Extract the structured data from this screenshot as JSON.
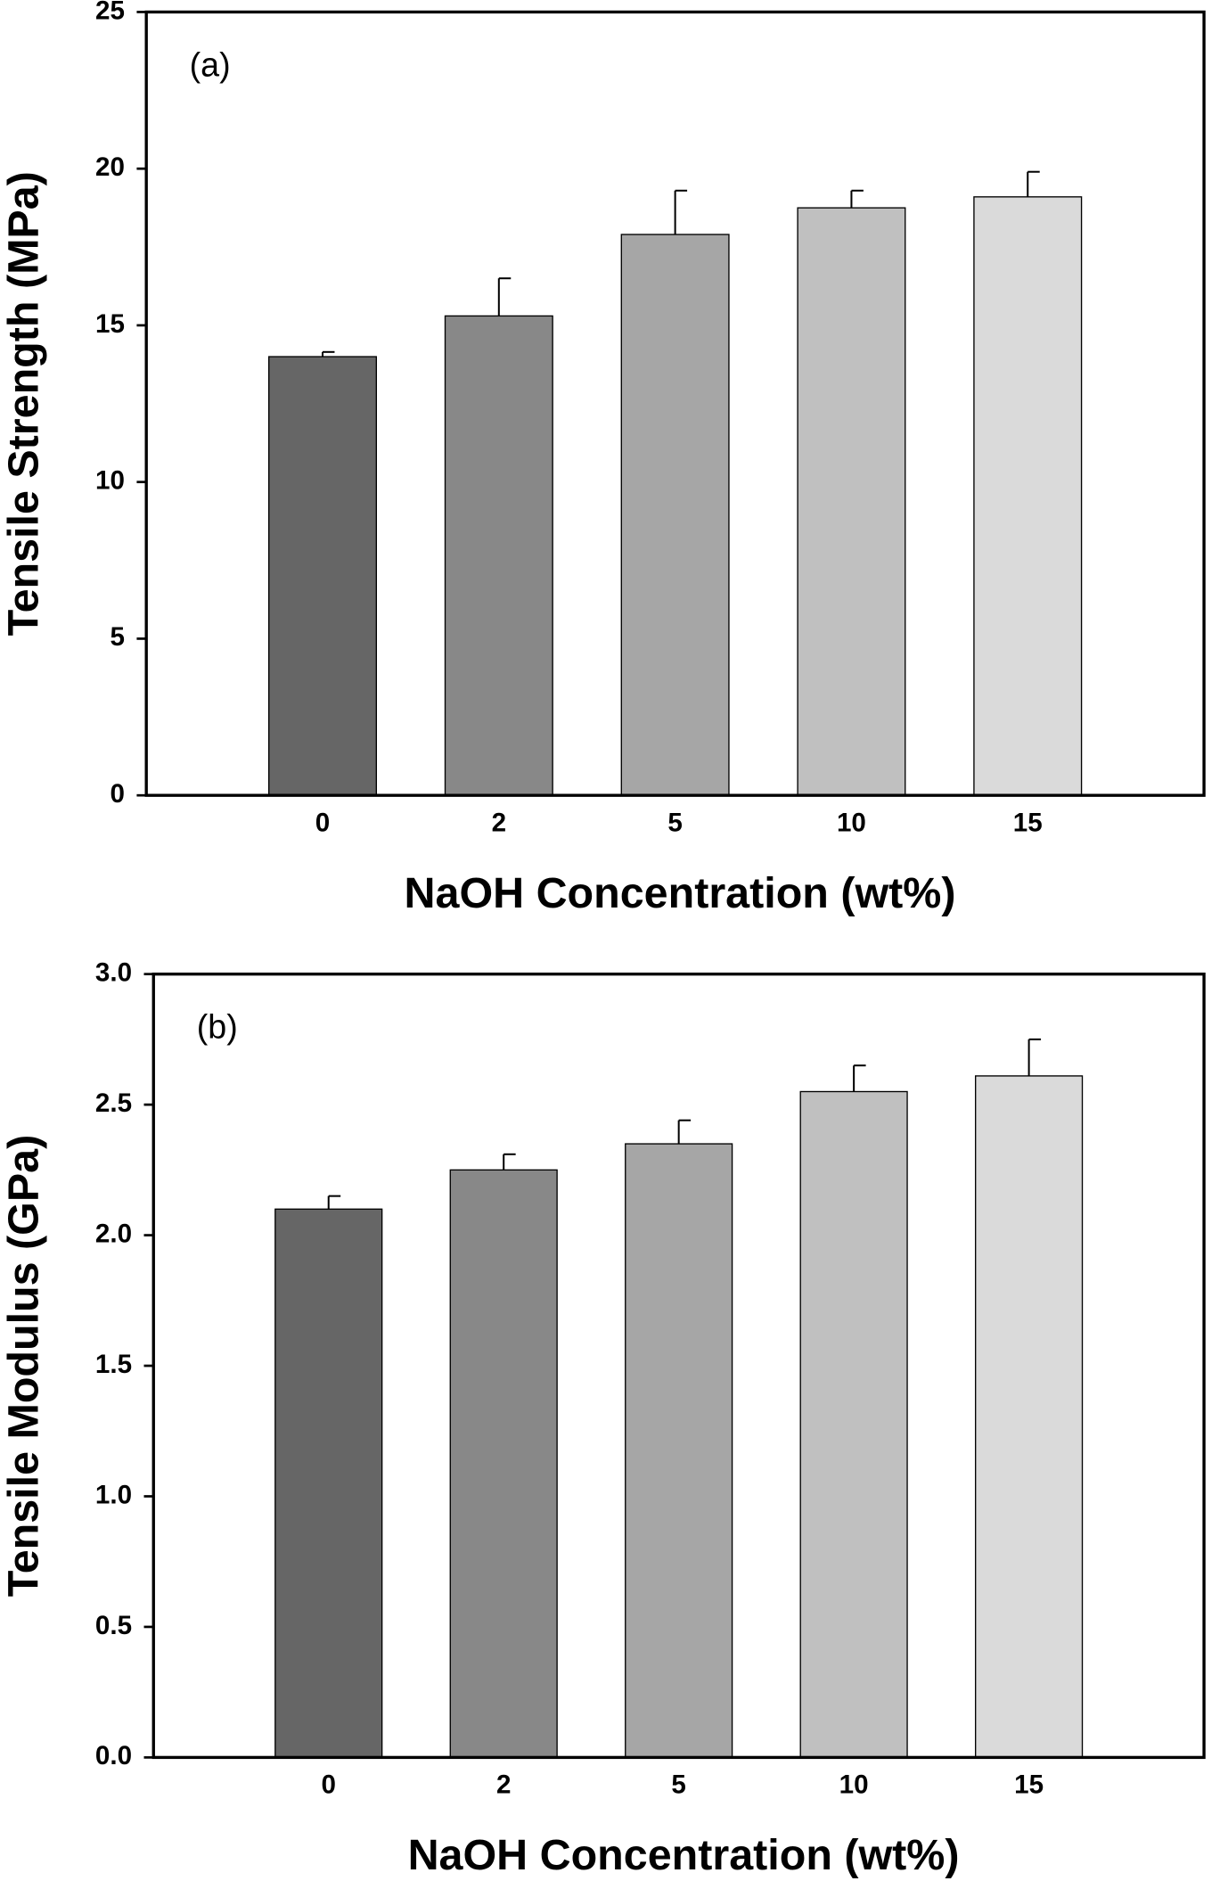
{
  "chart_data": [
    {
      "type": "bar",
      "annotation": "(a)",
      "x_label": "NaOH Concentration (wt%)",
      "y_label": "Tensile Strength (MPa)",
      "categories": [
        "0",
        "2",
        "5",
        "10",
        "15"
      ],
      "values": [
        14.0,
        15.3,
        17.9,
        18.75,
        19.1
      ],
      "errors": [
        0.15,
        1.2,
        1.4,
        0.55,
        0.8
      ],
      "colors": [
        "#666666",
        "#888888",
        "#a6a6a6",
        "#c0c0c0",
        "#dadada"
      ],
      "ylim": [
        0,
        25
      ],
      "yticks": [
        0,
        5,
        10,
        15,
        20,
        25
      ]
    },
    {
      "type": "bar",
      "annotation": "(b)",
      "x_label": "NaOH Concentration (wt%)",
      "y_label": "Tensile Modulus (GPa)",
      "categories": [
        "0",
        "2",
        "5",
        "10",
        "15"
      ],
      "values": [
        2.1,
        2.25,
        2.35,
        2.55,
        2.61
      ],
      "errors": [
        0.05,
        0.06,
        0.09,
        0.1,
        0.14
      ],
      "colors": [
        "#666666",
        "#888888",
        "#a6a6a6",
        "#c0c0c0",
        "#dadada"
      ],
      "ylim": [
        0,
        3
      ],
      "yticks": [
        {
          "value": 0,
          "label": "0.0"
        },
        {
          "value": 0.5,
          "label": "0.5"
        },
        {
          "value": 1,
          "label": "1.0"
        },
        {
          "value": 1.5,
          "label": "1.5"
        },
        {
          "value": 2,
          "label": "2.0"
        },
        {
          "value": 2.5,
          "label": "2.5"
        },
        {
          "value": 3,
          "label": "3.0"
        }
      ]
    }
  ]
}
